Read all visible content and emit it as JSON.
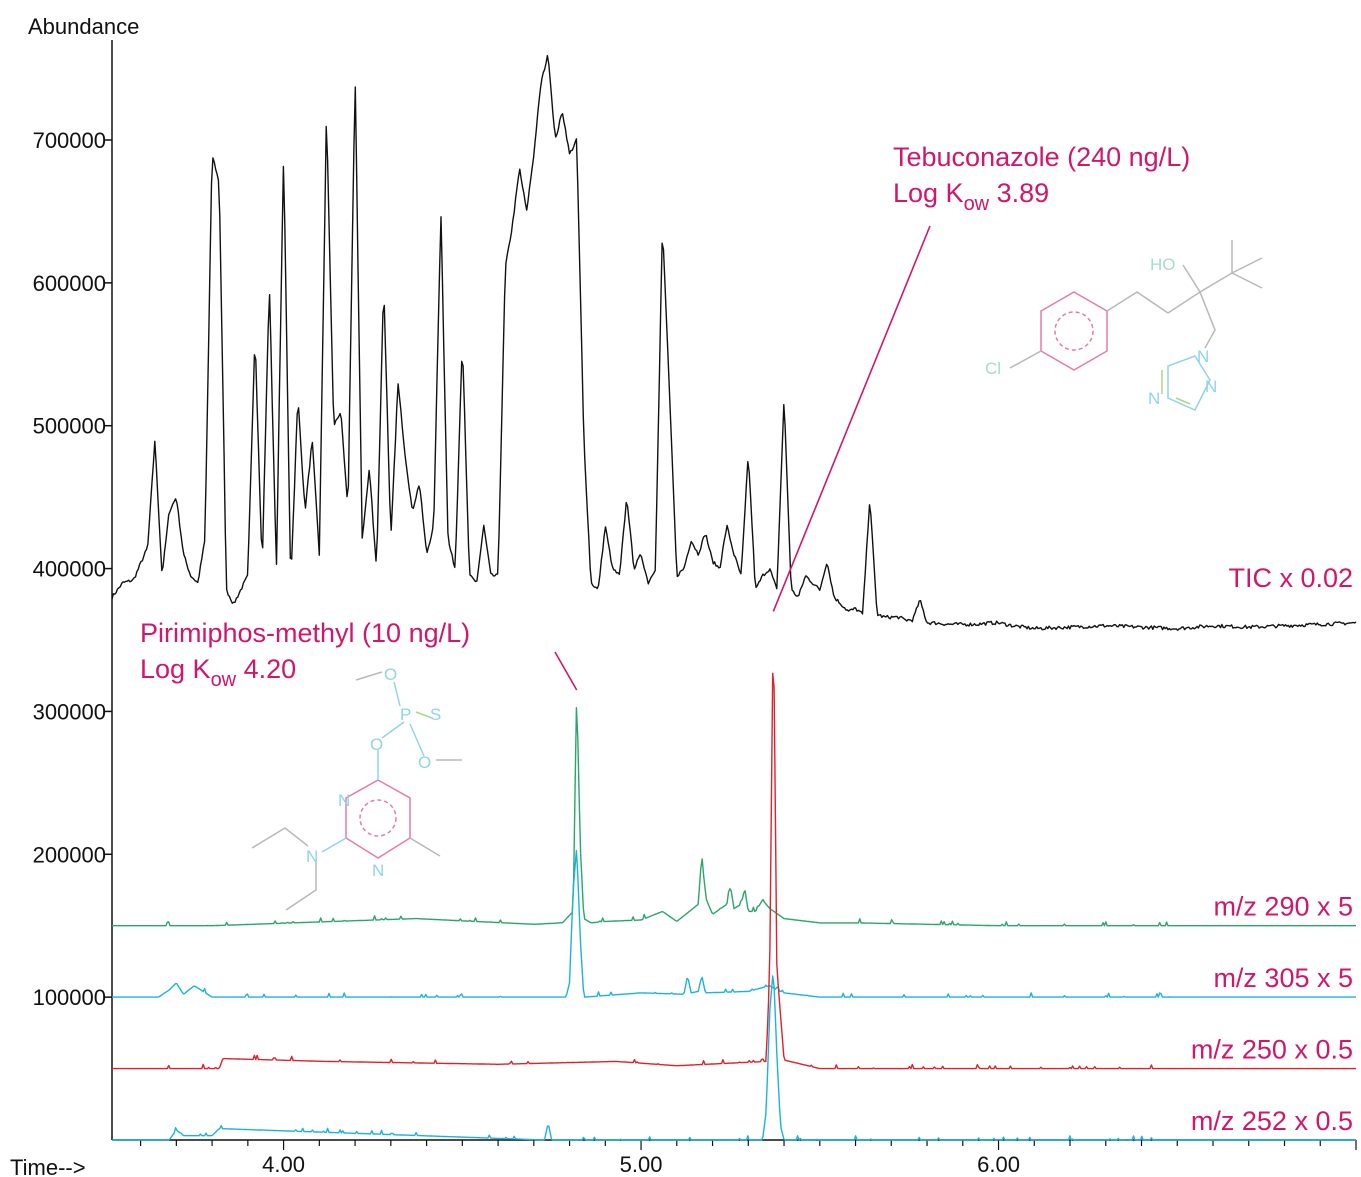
{
  "colors": {
    "tic": "#111111",
    "mz290": "#2aa66a",
    "mz305": "#1ab3e0",
    "mz250": "#e0202a",
    "mz252": "#1ab3e0",
    "annotation": "#d0176c",
    "structure_pink": "#e87aa8",
    "structure_blue": "#8fd3ee",
    "structure_gray": "#b8b8b8",
    "structure_green": "#a8d88a"
  },
  "chart_data": {
    "type": "line",
    "ylabel": "Abundance",
    "xlabel": "Time-->",
    "xlim": [
      3.52,
      7.0
    ],
    "ylim": [
      0,
      770000
    ],
    "x_ticks": [
      4.0,
      5.0,
      6.0
    ],
    "x_tick_labels": [
      "4.00",
      "5.00",
      "6.00"
    ],
    "y_ticks": [
      100000,
      200000,
      300000,
      400000,
      500000,
      600000,
      700000
    ],
    "y_tick_labels": [
      "100000",
      "200000",
      "300000",
      "400000",
      "500000",
      "600000",
      "700000"
    ],
    "series": [
      {
        "name": "TIC x 0.02",
        "key": "tic",
        "baseline": 380000,
        "x": [
          3.52,
          3.55,
          3.58,
          3.62,
          3.64,
          3.66,
          3.68,
          3.7,
          3.72,
          3.74,
          3.76,
          3.78,
          3.8,
          3.82,
          3.84,
          3.86,
          3.88,
          3.9,
          3.92,
          3.94,
          3.96,
          3.98,
          4.0,
          4.02,
          4.04,
          4.06,
          4.08,
          4.1,
          4.12,
          4.14,
          4.16,
          4.18,
          4.2,
          4.22,
          4.24,
          4.26,
          4.28,
          4.3,
          4.32,
          4.34,
          4.36,
          4.38,
          4.4,
          4.42,
          4.44,
          4.46,
          4.48,
          4.5,
          4.52,
          4.54,
          4.56,
          4.58,
          4.6,
          4.62,
          4.64,
          4.66,
          4.68,
          4.7,
          4.72,
          4.74,
          4.76,
          4.78,
          4.8,
          4.82,
          4.84,
          4.86,
          4.88,
          4.9,
          4.92,
          4.94,
          4.96,
          4.98,
          5.0,
          5.02,
          5.04,
          5.06,
          5.08,
          5.1,
          5.12,
          5.14,
          5.16,
          5.18,
          5.2,
          5.22,
          5.24,
          5.26,
          5.28,
          5.3,
          5.32,
          5.34,
          5.36,
          5.38,
          5.4,
          5.42,
          5.44,
          5.46,
          5.48,
          5.5,
          5.52,
          5.54,
          5.56,
          5.58,
          5.6,
          5.62,
          5.64,
          5.66,
          5.68,
          5.7,
          5.72,
          5.74,
          5.76,
          5.78,
          5.8,
          5.82,
          5.86,
          5.9,
          5.94,
          5.98,
          6.0,
          6.04,
          6.1,
          6.2,
          6.3,
          6.4,
          6.5,
          6.6,
          6.7,
          6.8,
          6.9,
          7.0
        ],
        "values": [
          380000,
          390000,
          392000,
          415000,
          490000,
          395000,
          440000,
          450000,
          410000,
          395000,
          390000,
          420000,
          690000,
          670000,
          385000,
          375000,
          385000,
          395000,
          565000,
          400000,
          600000,
          400000,
          690000,
          390000,
          520000,
          440000,
          490000,
          410000,
          720000,
          500000,
          510000,
          440000,
          745000,
          420000,
          470000,
          400000,
          600000,
          420000,
          530000,
          480000,
          440000,
          460000,
          410000,
          430000,
          650000,
          420000,
          400000,
          560000,
          395000,
          390000,
          430000,
          395000,
          395000,
          610000,
          640000,
          680000,
          650000,
          690000,
          740000,
          760000,
          700000,
          720000,
          690000,
          700000,
          490000,
          390000,
          385000,
          430000,
          400000,
          395000,
          450000,
          400000,
          410000,
          390000,
          400000,
          640000,
          520000,
          395000,
          400000,
          420000,
          410000,
          425000,
          405000,
          400000,
          430000,
          410000,
          395000,
          480000,
          385000,
          395000,
          400000,
          385000,
          520000,
          385000,
          380000,
          395000,
          390000,
          385000,
          405000,
          380000,
          375000,
          370000,
          372000,
          368000,
          450000,
          368000,
          366000,
          366000,
          366000,
          364000,
          364000,
          378000,
          362000,
          362000,
          361000,
          361000,
          361000,
          362000,
          362000,
          360000,
          358000,
          359000,
          360000,
          359000,
          358000,
          360000,
          359000,
          360000,
          361000,
          362000
        ]
      },
      {
        "name": "m/z 290 x 5",
        "key": "mz290",
        "baseline": 150000,
        "x": [
          3.52,
          3.8,
          4.37,
          4.7,
          4.78,
          4.81,
          4.82,
          4.83,
          4.84,
          4.86,
          4.9,
          5.0,
          5.06,
          5.1,
          5.16,
          5.17,
          5.18,
          5.2,
          5.24,
          5.25,
          5.26,
          5.28,
          5.29,
          5.3,
          5.32,
          5.34,
          5.36,
          5.4,
          5.5,
          5.6,
          6.0,
          7.0
        ],
        "values": [
          150000,
          150000,
          155000,
          151000,
          152000,
          160000,
          315000,
          205000,
          155000,
          152000,
          153000,
          154000,
          160000,
          153000,
          165000,
          200000,
          170000,
          158000,
          165000,
          178000,
          162000,
          165000,
          176000,
          160000,
          160000,
          168000,
          162000,
          155000,
          152000,
          152000,
          150000,
          150000
        ]
      },
      {
        "name": "m/z 305 x 5",
        "key": "mz305",
        "baseline": 100000,
        "x": [
          3.52,
          3.65,
          3.68,
          3.7,
          3.72,
          3.75,
          3.8,
          4.79,
          4.8,
          4.81,
          4.82,
          4.83,
          4.84,
          5.0,
          5.12,
          5.13,
          5.14,
          5.16,
          5.17,
          5.18,
          5.3,
          5.36,
          5.38,
          5.4,
          5.5,
          7.0
        ],
        "values": [
          100000,
          100000,
          105000,
          110000,
          102000,
          108000,
          100000,
          100000,
          110000,
          175000,
          205000,
          140000,
          100000,
          103000,
          102000,
          115000,
          103000,
          104000,
          115000,
          103000,
          104000,
          108000,
          105000,
          103000,
          100000,
          100000
        ]
      },
      {
        "name": "m/z 250 x 0.5",
        "key": "mz250",
        "baseline": 50000,
        "x": [
          3.52,
          3.82,
          3.83,
          4.12,
          4.6,
          4.93,
          5.1,
          5.35,
          5.36,
          5.37,
          5.38,
          5.4,
          5.5,
          7.0
        ],
        "values": [
          50000,
          50000,
          57000,
          55000,
          53000,
          55000,
          52000,
          55000,
          120000,
          370000,
          120000,
          56000,
          50000,
          50000
        ]
      },
      {
        "name": "m/z 252 x 0.5",
        "key": "mz252",
        "baseline": 0,
        "x": [
          3.52,
          3.68,
          3.7,
          3.72,
          3.8,
          3.82,
          4.73,
          4.74,
          4.75,
          5.34,
          5.35,
          5.36,
          5.37,
          5.38,
          5.39,
          5.4,
          7.0
        ],
        "values": [
          0,
          0,
          7000,
          3000,
          3000,
          8000,
          0,
          12000,
          0,
          0,
          20000,
          90000,
          120000,
          60000,
          10000,
          0,
          0
        ]
      }
    ],
    "annotations": [
      {
        "key": "tebu",
        "line1": "Tebuconazole (240 ng/L)",
        "line2_prefix": "Log K",
        "line2_sub": "ow",
        "line2_suffix": " 3.89",
        "target_x": 5.37,
        "target_y": 370000
      },
      {
        "key": "pirim",
        "line1": "Pirimiphos-methyl (10 ng/L)",
        "line2_prefix": "Log K",
        "line2_sub": "ow",
        "line2_suffix": " 4.20",
        "target_x": 4.82,
        "target_y": 315000
      }
    ]
  },
  "structures": {
    "tebu_atoms": [
      "Cl",
      "HO",
      "N",
      "N",
      "N"
    ],
    "pirim_atoms": [
      "O",
      "P",
      "S",
      "O",
      "O",
      "N",
      "N",
      "N"
    ]
  }
}
